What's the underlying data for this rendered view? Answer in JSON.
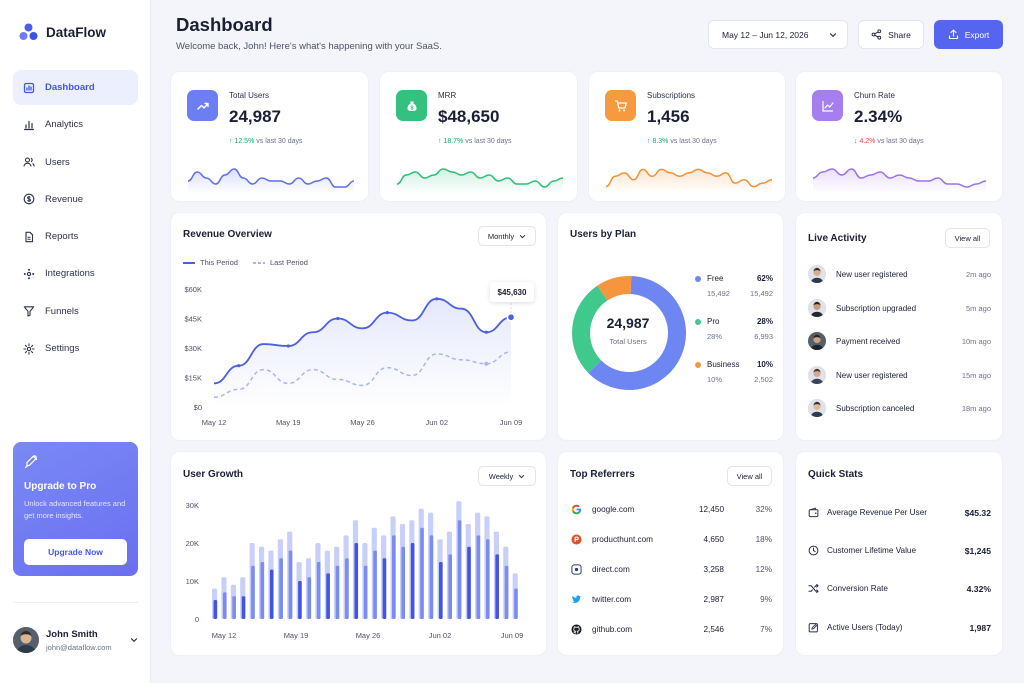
{
  "brand": {
    "name": "DataFlow"
  },
  "sidebar": {
    "items": [
      {
        "label": "Dashboard",
        "icon": "dashboard-icon",
        "active": true
      },
      {
        "label": "Analytics",
        "icon": "analytics-icon"
      },
      {
        "label": "Users",
        "icon": "users-icon"
      },
      {
        "label": "Revenue",
        "icon": "dollar-icon"
      },
      {
        "label": "Reports",
        "icon": "document-icon"
      },
      {
        "label": "Integrations",
        "icon": "integrations-icon"
      },
      {
        "label": "Funnels",
        "icon": "funnel-icon"
      },
      {
        "label": "Settings",
        "icon": "gear-icon"
      }
    ],
    "upgrade": {
      "title": "Upgrade to Pro",
      "text": "Unlock advanced features and get more insights.",
      "button": "Upgrade Now"
    },
    "user": {
      "name": "John Smith",
      "email": "john@dataflow.com"
    }
  },
  "header": {
    "title": "Dashboard",
    "subtitle": "Welcome back, John! Here's what's happening with your SaaS.",
    "date_range": "May 12 – Jun 12, 2026",
    "share": "Share",
    "export": "Export"
  },
  "stats": [
    {
      "label": "Total Users",
      "value": "24,987",
      "delta": "↑ 12.5%",
      "delta_dir": "up",
      "note": "vs last 30 days",
      "color": "#6c7ff2",
      "icon": "trend-up-icon"
    },
    {
      "label": "MRR",
      "value": "$48,650",
      "delta": "↑ 18.7%",
      "delta_dir": "up",
      "note": "vs last 30 days",
      "color": "#34c07f",
      "icon": "money-bag-icon"
    },
    {
      "label": "Subscriptions",
      "value": "1,456",
      "delta": "↑ 8.3%",
      "delta_dir": "up",
      "note": "vs last 30 days",
      "color": "#f59a3e",
      "icon": "cart-icon"
    },
    {
      "label": "Churn Rate",
      "value": "2.34%",
      "delta": "↓ 4.2%",
      "delta_dir": "down",
      "note": "vs last 30 days",
      "color": "#a57ef0",
      "icon": "trend-chart-icon"
    }
  ],
  "revenue": {
    "title": "Revenue Overview",
    "period": "Monthly",
    "legend_this": "This Period",
    "legend_last": "Last Period",
    "tooltip": "$45,630"
  },
  "plans": {
    "title": "Users by Plan",
    "center_value": "24,987",
    "center_label": "Total Users",
    "items": [
      {
        "name": "Free",
        "pct": "62%",
        "sub_pct": "15,492",
        "count": "15,492",
        "color": "#6d86f2"
      },
      {
        "name": "Pro",
        "pct": "28%",
        "sub_pct": "28%",
        "count": "6,993",
        "color": "#3fc98d"
      },
      {
        "name": "Business",
        "pct": "10%",
        "sub_pct": "10%",
        "count": "2,502",
        "color": "#f5963f"
      }
    ]
  },
  "activity": {
    "title": "Live Activity",
    "view_all": "View all",
    "items": [
      {
        "text": "New user registered",
        "time": "2m ago"
      },
      {
        "text": "Subscription upgraded",
        "time": "5m ago"
      },
      {
        "text": "Payment received",
        "time": "10m ago"
      },
      {
        "text": "New user registered",
        "time": "15m ago"
      },
      {
        "text": "Subscription canceled",
        "time": "18m ago"
      }
    ]
  },
  "growth": {
    "title": "User Growth",
    "period": "Weekly"
  },
  "referrers": {
    "title": "Top Referrers",
    "view_all": "View all",
    "items": [
      {
        "name": "google.com",
        "value": "12,450",
        "pct": "32%",
        "icon": "google-icon"
      },
      {
        "name": "producthunt.com",
        "value": "4,650",
        "pct": "18%",
        "icon": "producthunt-icon"
      },
      {
        "name": "direct.com",
        "value": "3,258",
        "pct": "12%",
        "icon": "direct-icon"
      },
      {
        "name": "twitter.com",
        "value": "2,987",
        "pct": "9%",
        "icon": "twitter-icon"
      },
      {
        "name": "github.com",
        "value": "2,546",
        "pct": "7%",
        "icon": "github-icon"
      }
    ]
  },
  "quick_stats": {
    "title": "Quick Stats",
    "items": [
      {
        "label": "Average Revenue Per User",
        "value": "$45.32",
        "icon": "wallet-icon"
      },
      {
        "label": "Customer Lifetime Value",
        "value": "$1,245",
        "icon": "clock-icon"
      },
      {
        "label": "Conversion Rate",
        "value": "4.32%",
        "icon": "shuffle-icon"
      },
      {
        "label": "Active Users (Today)",
        "value": "1,987",
        "icon": "edit-icon"
      }
    ]
  },
  "chart_data": [
    {
      "type": "line",
      "title": "Revenue Overview",
      "x_ticks": [
        "May 12",
        "May 19",
        "May 26",
        "Jun 02",
        "Jun 09"
      ],
      "y_ticks": [
        "$0",
        "$15K",
        "$30K",
        "$45K",
        "$60K"
      ],
      "ylim": [
        0,
        60000
      ],
      "series": [
        {
          "name": "This Period",
          "values": [
            12000,
            21000,
            32000,
            31000,
            38000,
            45000,
            40000,
            48000,
            44000,
            55000,
            50000,
            38000,
            45630
          ]
        },
        {
          "name": "Last Period",
          "values": [
            5000,
            9000,
            19000,
            12000,
            19000,
            14000,
            11000,
            20000,
            16000,
            27000,
            24000,
            22000,
            28000
          ]
        }
      ],
      "legend": "top-left",
      "grid": false
    },
    {
      "type": "pie",
      "title": "Users by Plan",
      "categories": [
        "Free",
        "Pro",
        "Business"
      ],
      "values": [
        62,
        28,
        10
      ]
    },
    {
      "type": "bar",
      "title": "User Growth",
      "x_ticks": [
        "May 12",
        "May 19",
        "May 26",
        "Jun 02",
        "Jun 09"
      ],
      "y_ticks": [
        "0",
        "10K",
        "20K",
        "30K"
      ],
      "ylim": [
        0,
        30000
      ],
      "series": [
        {
          "name": "",
          "values": [
            8000,
            11000,
            9000,
            11000,
            20000,
            19000,
            18000,
            21000,
            23000,
            15000,
            16000,
            20000,
            18000,
            19000,
            22000,
            26000,
            20000,
            24000,
            22000,
            27000,
            25000,
            26000,
            29000,
            28000,
            21000,
            23000,
            31000,
            25000,
            28000,
            27000,
            23000,
            19000,
            12000
          ]
        },
        {
          "name": "",
          "values": [
            5000,
            7000,
            6000,
            6000,
            14000,
            15000,
            13000,
            16000,
            18000,
            10000,
            11000,
            15000,
            12000,
            14000,
            16000,
            20000,
            14000,
            18000,
            16000,
            22000,
            19000,
            20000,
            24000,
            22000,
            15000,
            17000,
            26000,
            19000,
            22000,
            21000,
            17000,
            14000,
            8000
          ]
        }
      ]
    },
    {
      "type": "line",
      "title": "",
      "series": [
        {
          "name": "",
          "values": [
            5,
            8,
            6,
            4,
            7,
            9,
            6,
            4,
            6,
            5,
            5,
            4,
            6,
            4,
            5,
            6,
            3,
            3,
            5
          ]
        }
      ]
    },
    {
      "type": "line",
      "title": "",
      "series": [
        {
          "name": "",
          "values": [
            4,
            7,
            8,
            6,
            7,
            9,
            8,
            7,
            8,
            6,
            7,
            5,
            6,
            4,
            4,
            5,
            3,
            5,
            6
          ]
        }
      ]
    },
    {
      "type": "line",
      "title": "",
      "series": [
        {
          "name": "",
          "values": [
            2,
            5,
            6,
            4,
            7,
            5,
            7,
            6,
            5,
            6,
            7,
            6,
            5,
            6,
            3,
            4,
            2,
            3,
            4
          ]
        }
      ]
    },
    {
      "type": "line",
      "title": "",
      "series": [
        {
          "name": "",
          "values": [
            6,
            8,
            9,
            7,
            9,
            6,
            7,
            8,
            6,
            7,
            6,
            5,
            5,
            6,
            4,
            4,
            3,
            4,
            5
          ]
        }
      ]
    }
  ]
}
